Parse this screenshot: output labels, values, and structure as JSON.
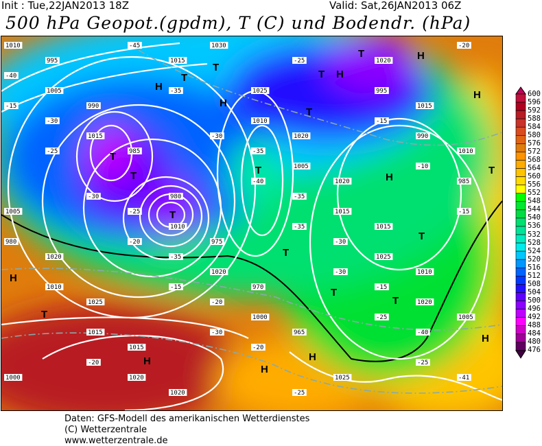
{
  "header": {
    "init": "Init : Tue,22JAN2013 18Z",
    "valid": "Valid: Sat,26JAN2013 06Z",
    "title": "500 hPa Geopot.(gpdm), T (C) und Bodendr. (hPa)"
  },
  "footer": {
    "line1": "Daten: GFS-Modell des amerikanischen Wetterdienstes",
    "line2": "(C) Wetterzentrale",
    "line3": "www.wetterzentrale.de"
  },
  "colorbar": {
    "labels": [
      "600",
      "596",
      "592",
      "588",
      "584",
      "580",
      "576",
      "572",
      "568",
      "564",
      "560",
      "556",
      "552",
      "548",
      "544",
      "540",
      "536",
      "532",
      "528",
      "524",
      "520",
      "516",
      "512",
      "508",
      "504",
      "500",
      "496",
      "492",
      "488",
      "484",
      "480",
      "476"
    ],
    "colors": [
      "#c0103c",
      "#b00020",
      "#b81c24",
      "#c83228",
      "#d84c20",
      "#e06414",
      "#e07c0c",
      "#ff9400",
      "#ffac00",
      "#ffc400",
      "#ffdc00",
      "#ffff00",
      "#00ff00",
      "#00e830",
      "#00dc44",
      "#00e070",
      "#00e498",
      "#00ecc0",
      "#00ecec",
      "#00c8ff",
      "#0098ff",
      "#0064ff",
      "#0038ff",
      "#2010ff",
      "#6000ff",
      "#8c00ff",
      "#c000ff",
      "#ff00ff",
      "#d000c8",
      "#a00098",
      "#600060"
    ],
    "top_arrow_color": "#c0005a",
    "bottom_arrow_color": "#400040"
  },
  "map": {
    "pressure_centers": [
      "H",
      "H",
      "H",
      "H",
      "H",
      "H",
      "H",
      "H",
      "H",
      "H",
      "H",
      "T",
      "T",
      "T",
      "T",
      "T",
      "T",
      "T",
      "T",
      "T",
      "T",
      "T",
      "T",
      "T",
      "T",
      "T"
    ],
    "isobar_labels": [
      "1030",
      "1025",
      "1020",
      "1020",
      "1015",
      "1010",
      "1005",
      "1000",
      "995",
      "990",
      "985",
      "980",
      "975",
      "970",
      "965",
      "1025",
      "1020",
      "1015",
      "1010",
      "1005",
      "1020",
      "1025",
      "1015",
      "1020",
      "1010",
      "1005",
      "1015",
      "1025",
      "1020",
      "1010",
      "1005",
      "1015",
      "1010",
      "1020",
      "1000",
      "995",
      "990",
      "985",
      "980",
      "1010",
      "1015",
      "1020",
      "1015"
    ],
    "temperature_labels": [
      "-35",
      "-35",
      "-30",
      "-15",
      "-40",
      "-41",
      "-40",
      "-30",
      "-25",
      "-35",
      "-20",
      "-20",
      "-25",
      "-15",
      "-10",
      "-15",
      "-20",
      "-45",
      "-35",
      "-30",
      "-40",
      "-35",
      "-30",
      "-25",
      "-25",
      "-20",
      "-15",
      "-25",
      "-30",
      "-20",
      "-15",
      "-30",
      "-25"
    ]
  }
}
